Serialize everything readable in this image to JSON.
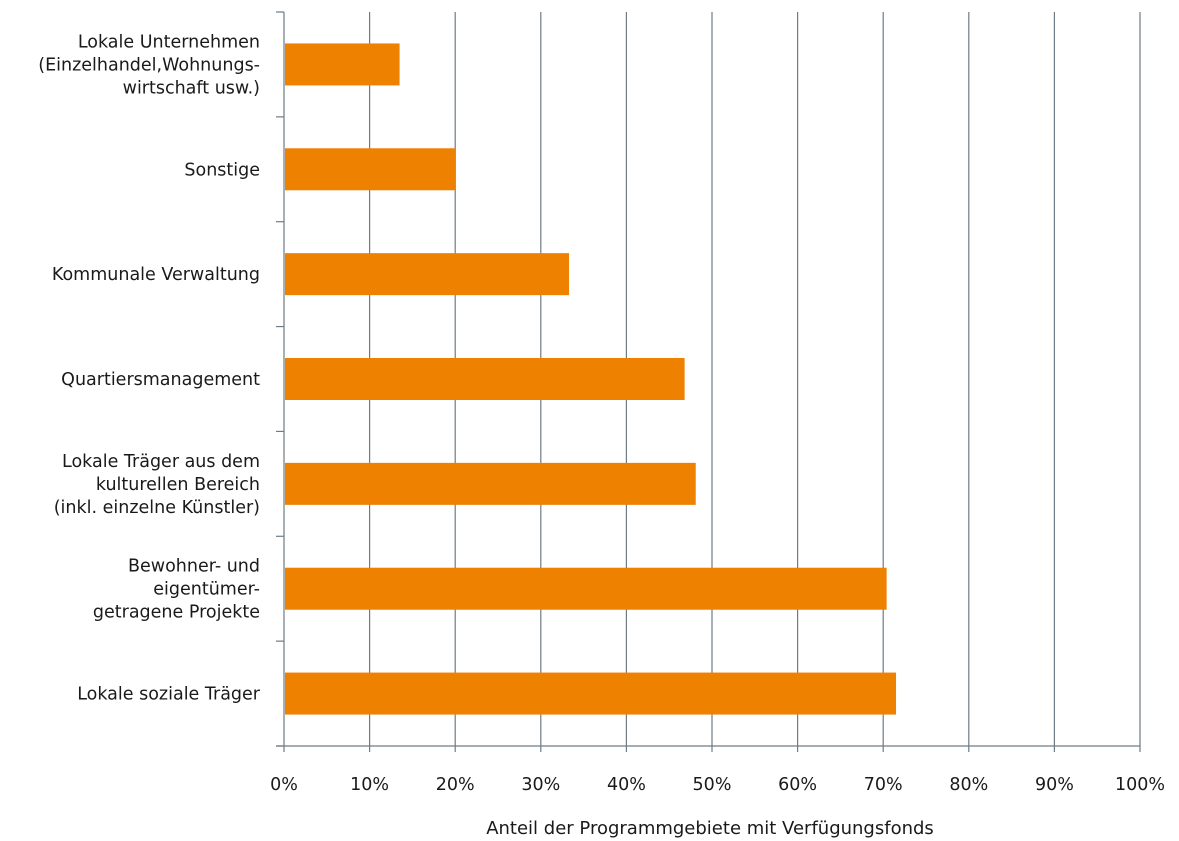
{
  "chart_data": {
    "type": "bar",
    "orientation": "horizontal",
    "categories": [
      [
        "Lokale Unternehmen",
        "(Einzelhandel,Wohnungs-",
        "wirtschaft usw.)"
      ],
      [
        "Sonstige"
      ],
      [
        "Kommunale Verwaltung"
      ],
      [
        "Quartiersmanagement"
      ],
      [
        "Lokale Träger aus dem",
        "kulturellen Bereich",
        "(inkl. einzelne Künstler)"
      ],
      [
        "Bewohner- und",
        "eigentümer-",
        "getragene Projekte"
      ],
      [
        "Lokale soziale Träger"
      ]
    ],
    "values": [
      13.5,
      20,
      33.3,
      46.8,
      48.1,
      70.4,
      71.5
    ],
    "xlabel": "Anteil der Programmgebiete mit Verfügungsfonds",
    "xlim": [
      0,
      100
    ],
    "xticks": [
      "0%",
      "10%",
      "20%",
      "30%",
      "40%",
      "50%",
      "60%",
      "70%",
      "80%",
      "90%",
      "100%"
    ],
    "grid": "vertical",
    "bar_color": "#ee8100",
    "grid_color": "#6d7b86"
  }
}
